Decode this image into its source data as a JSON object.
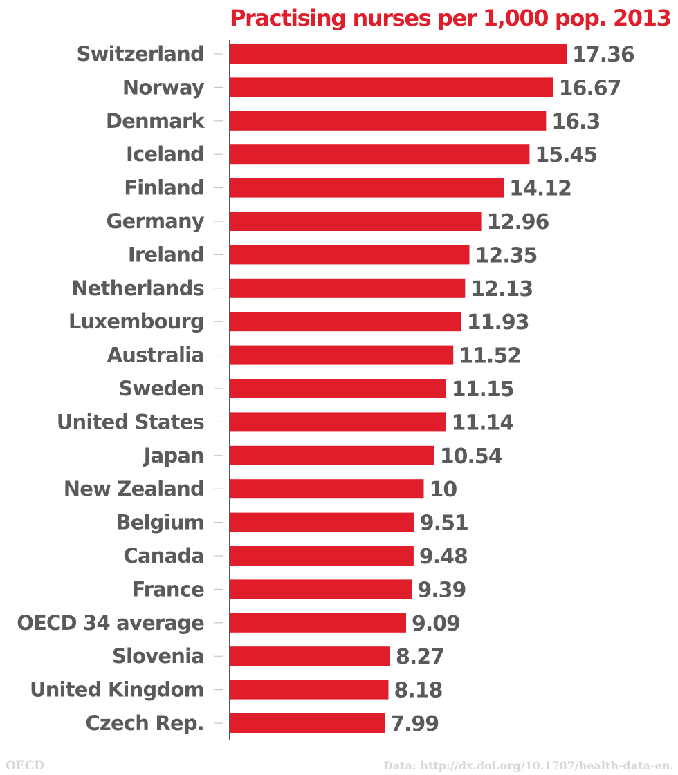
{
  "chart_data": {
    "type": "bar",
    "orientation": "horizontal",
    "title": "Practising nurses per 1,000 pop. 2013",
    "categories": [
      "Switzerland",
      "Norway",
      "Denmark",
      "Iceland",
      "Finland",
      "Germany",
      "Ireland",
      "Netherlands",
      "Luxembourg",
      "Australia",
      "Sweden",
      "United States",
      "Japan",
      "New Zealand",
      "Belgium",
      "Canada",
      "France",
      "OECD 34 average",
      "Slovenia",
      "United Kingdom",
      "Czech Rep."
    ],
    "values": [
      17.36,
      16.67,
      16.3,
      15.45,
      14.12,
      12.96,
      12.35,
      12.13,
      11.93,
      11.52,
      11.15,
      11.14,
      10.54,
      10,
      9.51,
      9.48,
      9.39,
      9.09,
      8.27,
      8.18,
      7.99
    ],
    "value_labels": [
      "17.36",
      "16.67",
      "16.3",
      "15.45",
      "14.12",
      "12.96",
      "12.35",
      "12.13",
      "11.93",
      "11.52",
      "11.15",
      "11.14",
      "10.54",
      "10",
      "9.51",
      "9.48",
      "9.39",
      "9.09",
      "8.27",
      "8.18",
      "7.99"
    ],
    "xlim": [
      0,
      17.36
    ],
    "grid": false,
    "bar_color": "#e01e2b",
    "label_color": "#5a5a5a"
  },
  "footer": {
    "source_left": "OECD",
    "source_right": "Data: http://dx.doi.org/10.1787/health-data-en."
  }
}
